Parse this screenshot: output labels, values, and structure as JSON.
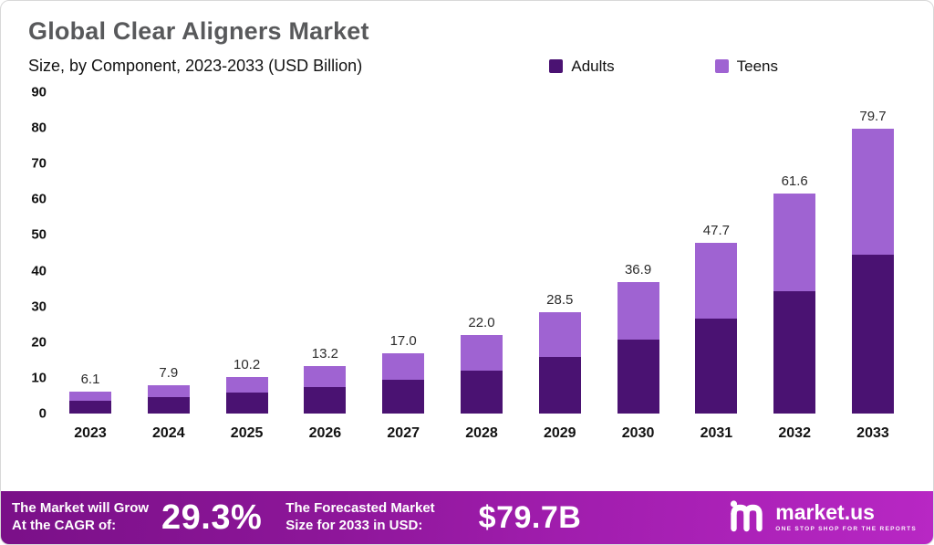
{
  "header": {
    "title": "Global Clear Aligners Market",
    "subtitle": "Size, by Component, 2023-2033 (USD Billion)"
  },
  "legend": [
    {
      "label": "Adults",
      "color": "#4a1272"
    },
    {
      "label": "Teens",
      "color": "#9f63d2"
    }
  ],
  "chart_data": {
    "type": "bar",
    "stacked": true,
    "title": "Global Clear Aligners Market Size, by Component, 2023-2033 (USD Billion)",
    "categories": [
      "2023",
      "2024",
      "2025",
      "2026",
      "2027",
      "2028",
      "2029",
      "2030",
      "2031",
      "2032",
      "2033"
    ],
    "series": [
      {
        "name": "Adults",
        "color": "#4a1272",
        "values": [
          3.5,
          4.5,
          5.9,
          7.4,
          9.5,
          12.0,
          15.9,
          20.7,
          26.5,
          34.3,
          44.5
        ]
      },
      {
        "name": "Teens",
        "color": "#9f63d2",
        "values": [
          2.6,
          3.4,
          4.3,
          5.8,
          7.5,
          10.0,
          12.6,
          16.2,
          21.2,
          27.3,
          35.2
        ]
      }
    ],
    "totals": [
      6.1,
      7.9,
      10.2,
      13.2,
      17.0,
      22.0,
      28.5,
      36.9,
      47.7,
      61.6,
      79.7
    ],
    "xlabel": "",
    "ylabel": "",
    "ylim": [
      0,
      90
    ],
    "yticks": [
      0,
      10,
      20,
      30,
      40,
      50,
      60,
      70,
      80,
      90
    ],
    "grid": false,
    "legend_position": "top"
  },
  "footer": {
    "cagr_label": "The Market will Grow\nAt the CAGR of:",
    "cagr_value": "29.3%",
    "forecast_label": "The Forecasted Market\nSize for 2033 in USD:",
    "forecast_value": "$79.7B",
    "brand": "market.us",
    "brand_tagline": "ONE STOP SHOP FOR THE REPORTS"
  }
}
